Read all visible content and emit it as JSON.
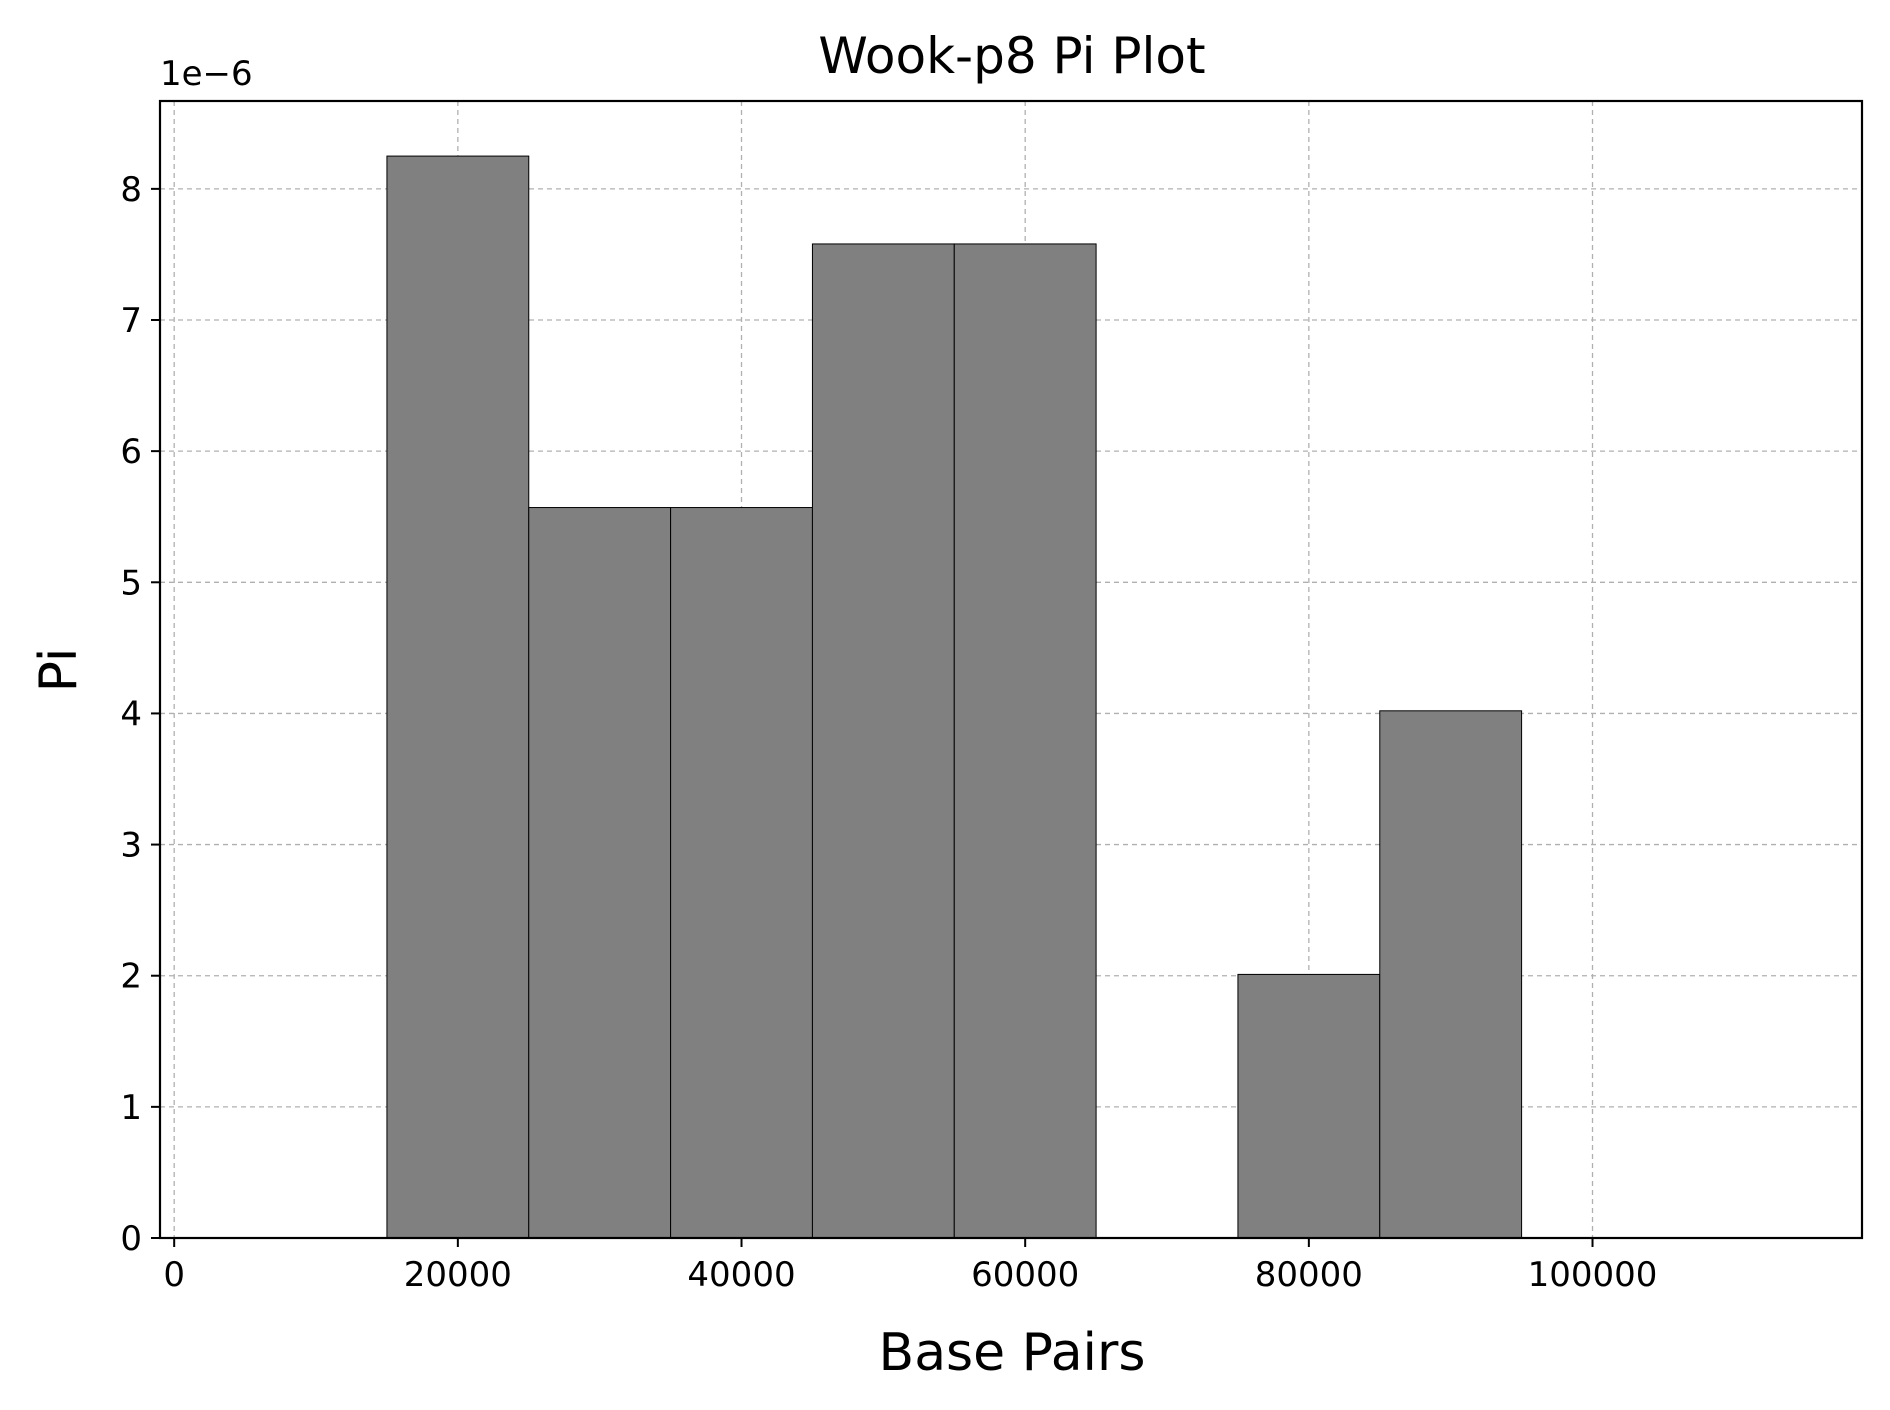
{
  "chart_data": {
    "type": "bar",
    "title": "Wook-p8 Pi Plot",
    "xlabel": "Base Pairs",
    "ylabel": "Pi",
    "offset_label": "1e−6",
    "xlim": [
      -1000,
      119000
    ],
    "ylim": [
      0,
      8.67
    ],
    "xticks": [
      0,
      20000,
      40000,
      60000,
      80000,
      100000
    ],
    "xtick_labels": [
      "0",
      "20000",
      "40000",
      "60000",
      "80000",
      "100000"
    ],
    "yticks": [
      0,
      1,
      2,
      3,
      4,
      5,
      6,
      7,
      8
    ],
    "ytick_labels": [
      "0",
      "1",
      "2",
      "3",
      "4",
      "5",
      "6",
      "7",
      "8"
    ],
    "y_scale_factor": 1e-06,
    "bar_width": 10000,
    "x": [
      20000,
      30000,
      40000,
      50000,
      60000,
      80000,
      90000
    ],
    "values": [
      8.25e-06,
      5.57e-06,
      5.57e-06,
      7.58e-06,
      7.58e-06,
      2.01e-06,
      4.02e-06
    ],
    "grid": true,
    "colors": {
      "bar": "#808080",
      "edge": "#000000",
      "grid": "#b0b0b0"
    }
  }
}
